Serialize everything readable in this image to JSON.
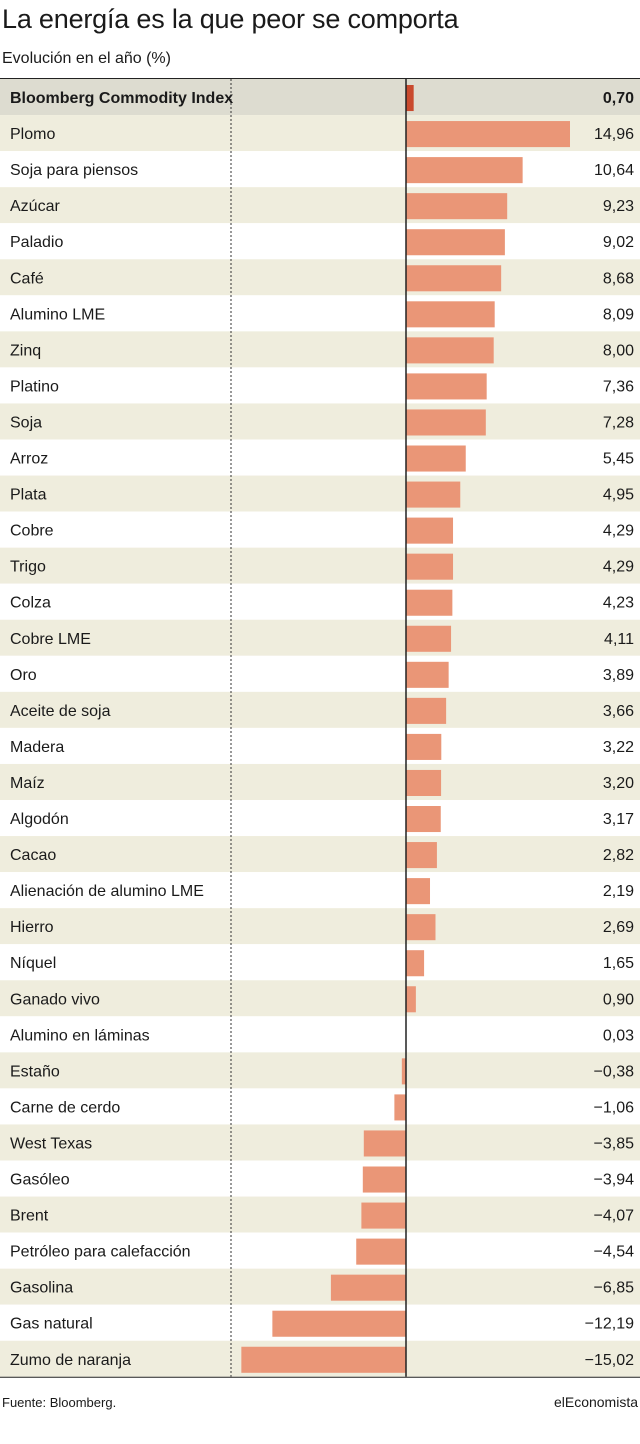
{
  "title": "La energía es la que peor se comporta",
  "subtitle": "Evolución en el año (%)",
  "source": "Fuente: Bloomberg.",
  "brand": "elEconomista",
  "colors": {
    "bar": "#ea9677",
    "highlight_bar": "#c94a2e",
    "stripe": "#efeddd",
    "highlight_row": "#dddcd0",
    "axis": "#222222"
  },
  "chart_data": {
    "type": "bar",
    "orientation": "horizontal",
    "title": "La energía es la que peor se comporta",
    "subtitle": "Evolución en el año (%)",
    "highlight": "Bloomberg Commodity Index",
    "categories": [
      "Bloomberg Commodity Index",
      "Plomo",
      "Soja para piensos",
      "Azúcar",
      "Paladio",
      "Café",
      "Alumino LME",
      "Zinq",
      "Platino",
      "Soja",
      "Arroz",
      "Plata",
      "Cobre",
      "Trigo",
      "Colza",
      "Cobre LME",
      "Oro",
      "Aceite de soja",
      "Madera",
      "Maíz",
      "Algodón",
      "Cacao",
      "Alienación de alumino LME",
      "Hierro",
      "Níquel",
      "Ganado vivo",
      "Alumino en láminas",
      "Estaño",
      "Carne de cerdo",
      "West Texas",
      "Gasóleo",
      "Brent",
      "Petróleo para calefacción",
      "Gasolina",
      "Gas natural",
      "Zumo de naranja"
    ],
    "values": [
      0.7,
      14.96,
      10.64,
      9.23,
      9.02,
      8.68,
      8.09,
      8.0,
      7.36,
      7.28,
      5.45,
      4.95,
      4.29,
      4.29,
      4.23,
      4.11,
      3.89,
      3.66,
      3.22,
      3.2,
      3.17,
      2.82,
      2.19,
      2.69,
      1.65,
      0.9,
      0.03,
      -0.38,
      -1.06,
      -3.85,
      -3.94,
      -4.07,
      -4.54,
      -6.85,
      -12.19,
      -15.02
    ],
    "value_labels": [
      "0,70",
      "14,96",
      "10,64",
      "9,23",
      "9,02",
      "8,68",
      "8,09",
      "8,00",
      "7,36",
      "7,28",
      "5,45",
      "4,95",
      "4,29",
      "4,29",
      "4,23",
      "4,11",
      "3,89",
      "3,66",
      "3,22",
      "3,20",
      "3,17",
      "2,82",
      "2,19",
      "2,69",
      "1,65",
      "0,90",
      "0,03",
      "−0,38",
      "−1,06",
      "−3,85",
      "−3,94",
      "−4,07",
      "−4,54",
      "−6,85",
      "−12,19",
      "−15,02"
    ],
    "xlim": [
      -15.02,
      14.96
    ],
    "grid": false,
    "legend": "none"
  }
}
